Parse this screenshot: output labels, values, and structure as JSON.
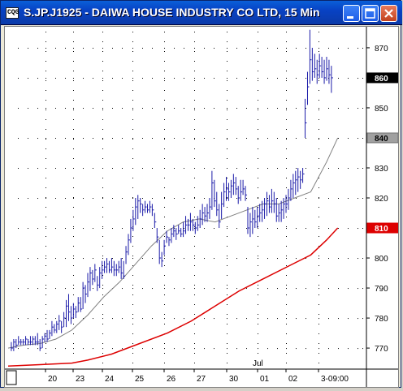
{
  "window": {
    "title": "S.JP.J1925 - DAIWA HOUSE INDUSTRY CO LTD, 15 Min",
    "app_icon_text": "CQG"
  },
  "colors": {
    "titlebar": "#0842c4",
    "price_bars": "#1a1aa8",
    "fast_ma": "#808080",
    "slow_ma": "#dd0000",
    "last_price_tag": "#000000",
    "fast_ma_tag": "#a0a0a0",
    "slow_ma_tag": "#dd0000"
  },
  "chart_data": {
    "type": "bar",
    "title": "",
    "y_ticks": [
      770,
      780,
      790,
      800,
      810,
      820,
      830,
      840,
      850,
      860,
      870
    ],
    "ylim": [
      763,
      877
    ],
    "x_ticks": [
      "20",
      "23",
      "24",
      "25",
      "26",
      "27",
      "30",
      "01",
      "02",
      "3-09:00"
    ],
    "month_label": "Jul",
    "tags": {
      "last_price": "860",
      "fast_ma": "840",
      "slow_ma": "810"
    },
    "fast_ma": [
      [
        0,
        770
      ],
      [
        20,
        771
      ],
      [
        40,
        771.5
      ],
      [
        60,
        773
      ],
      [
        80,
        776
      ],
      [
        100,
        781
      ],
      [
        120,
        787
      ],
      [
        140,
        792
      ],
      [
        160,
        798
      ],
      [
        180,
        804
      ],
      [
        200,
        809
      ],
      [
        220,
        812
      ],
      [
        240,
        813
      ],
      [
        260,
        812
      ],
      [
        280,
        814
      ],
      [
        300,
        816
      ],
      [
        320,
        818
      ],
      [
        340,
        818
      ],
      [
        360,
        820
      ],
      [
        380,
        822
      ],
      [
        400,
        832
      ],
      [
        414,
        840
      ]
    ],
    "slow_ma": [
      [
        0,
        764
      ],
      [
        40,
        764.5
      ],
      [
        80,
        765
      ],
      [
        100,
        766
      ],
      [
        130,
        768
      ],
      [
        160,
        771
      ],
      [
        200,
        775
      ],
      [
        230,
        779
      ],
      [
        260,
        784
      ],
      [
        290,
        789
      ],
      [
        320,
        793
      ],
      [
        350,
        797
      ],
      [
        380,
        801
      ],
      [
        400,
        806
      ],
      [
        414,
        810
      ]
    ],
    "price_bars": [
      [
        4,
        772,
        769,
        770
      ],
      [
        7,
        773,
        769,
        772
      ],
      [
        10,
        773,
        770,
        771
      ],
      [
        13,
        774,
        771,
        772
      ],
      [
        16,
        773,
        771,
        772
      ],
      [
        19,
        773,
        771,
        772
      ],
      [
        22,
        774,
        771,
        773
      ],
      [
        25,
        773,
        771,
        772
      ],
      [
        28,
        774,
        771,
        772
      ],
      [
        31,
        774,
        771,
        773
      ],
      [
        34,
        774,
        771,
        772
      ],
      [
        37,
        775,
        771,
        772
      ],
      [
        40,
        773,
        769,
        770
      ],
      [
        43,
        774,
        770,
        773
      ],
      [
        46,
        775,
        772,
        774
      ],
      [
        49,
        776,
        772,
        773
      ],
      [
        52,
        776,
        773,
        775
      ],
      [
        55,
        779,
        774,
        777
      ],
      [
        58,
        778,
        775,
        776
      ],
      [
        61,
        779,
        775,
        778
      ],
      [
        64,
        781,
        776,
        779
      ],
      [
        67,
        779,
        775,
        777
      ],
      [
        70,
        782,
        777,
        780
      ],
      [
        73,
        786,
        777,
        784
      ],
      [
        76,
        788,
        779,
        782
      ],
      [
        79,
        784,
        778,
        780
      ],
      [
        82,
        785,
        780,
        783
      ],
      [
        85,
        784,
        780,
        782
      ],
      [
        88,
        787,
        782,
        785
      ],
      [
        91,
        787,
        782,
        783
      ],
      [
        94,
        792,
        783,
        790
      ],
      [
        97,
        791,
        785,
        788
      ],
      [
        100,
        795,
        787,
        792
      ],
      [
        103,
        797,
        789,
        795
      ],
      [
        106,
        796,
        791,
        793
      ],
      [
        109,
        798,
        792,
        796
      ],
      [
        112,
        794,
        789,
        791
      ],
      [
        115,
        797,
        790,
        795
      ],
      [
        118,
        799,
        793,
        796
      ],
      [
        121,
        799,
        795,
        797
      ],
      [
        124,
        800,
        795,
        798
      ],
      [
        127,
        799,
        795,
        796
      ],
      [
        130,
        800,
        795,
        797
      ],
      [
        133,
        799,
        794,
        796
      ],
      [
        136,
        798,
        794,
        796
      ],
      [
        139,
        799,
        795,
        797
      ],
      [
        142,
        800,
        793,
        795
      ],
      [
        145,
        799,
        793,
        794
      ],
      [
        148,
        804,
        798,
        802
      ],
      [
        151,
        808,
        801,
        806
      ],
      [
        154,
        813,
        805,
        810
      ],
      [
        157,
        816,
        809,
        813
      ],
      [
        160,
        820,
        811,
        817
      ],
      [
        163,
        821,
        813,
        819
      ],
      [
        166,
        820,
        815,
        818
      ],
      [
        169,
        818,
        814,
        816
      ],
      [
        172,
        819,
        815,
        817
      ],
      [
        175,
        818,
        815,
        816
      ],
      [
        178,
        819,
        815,
        817
      ],
      [
        181,
        818,
        814,
        816
      ],
      [
        184,
        815,
        810,
        812
      ],
      [
        187,
        810,
        805,
        807
      ],
      [
        190,
        806,
        798,
        800
      ],
      [
        193,
        802,
        797,
        799
      ],
      [
        196,
        806,
        801,
        804
      ],
      [
        199,
        809,
        805,
        807
      ],
      [
        202,
        807,
        804,
        806
      ],
      [
        205,
        810,
        805,
        808
      ],
      [
        208,
        811,
        807,
        809
      ],
      [
        211,
        810,
        806,
        808
      ],
      [
        214,
        811,
        808,
        809
      ],
      [
        217,
        810,
        807,
        808
      ],
      [
        220,
        812,
        807,
        809
      ],
      [
        223,
        814,
        808,
        811
      ],
      [
        226,
        813,
        809,
        811
      ],
      [
        229,
        815,
        809,
        812
      ],
      [
        232,
        813,
        809,
        811
      ],
      [
        235,
        812,
        808,
        810
      ],
      [
        238,
        814,
        809,
        811
      ],
      [
        241,
        816,
        810,
        813
      ],
      [
        244,
        818,
        811,
        815
      ],
      [
        247,
        817,
        812,
        814
      ],
      [
        250,
        818,
        812,
        815
      ],
      [
        253,
        820,
        813,
        817
      ],
      [
        256,
        829,
        816,
        825
      ],
      [
        259,
        826,
        817,
        819
      ],
      [
        262,
        822,
        814,
        816
      ],
      [
        265,
        818,
        810,
        812
      ],
      [
        268,
        822,
        813,
        818
      ],
      [
        271,
        825,
        817,
        822
      ],
      [
        274,
        827,
        819,
        823
      ],
      [
        277,
        825,
        819,
        822
      ],
      [
        280,
        826,
        820,
        824
      ],
      [
        283,
        828,
        821,
        825
      ],
      [
        286,
        827,
        821,
        823
      ],
      [
        289,
        824,
        818,
        820
      ],
      [
        292,
        826,
        819,
        822
      ],
      [
        295,
        826,
        821,
        823
      ],
      [
        298,
        824,
        819,
        821
      ],
      [
        301,
        817,
        808,
        810
      ],
      [
        304,
        815,
        807,
        812
      ],
      [
        307,
        817,
        808,
        813
      ],
      [
        310,
        816,
        810,
        812
      ],
      [
        313,
        817,
        810,
        814
      ],
      [
        316,
        818,
        812,
        815
      ],
      [
        319,
        819,
        812,
        816
      ],
      [
        322,
        820,
        813,
        818
      ],
      [
        325,
        822,
        814,
        819
      ],
      [
        328,
        821,
        815,
        817
      ],
      [
        331,
        823,
        815,
        819
      ],
      [
        334,
        822,
        815,
        818
      ],
      [
        337,
        820,
        812,
        814
      ],
      [
        340,
        818,
        812,
        815
      ],
      [
        343,
        819,
        812,
        816
      ],
      [
        346,
        820,
        813,
        818
      ],
      [
        349,
        821,
        815,
        818
      ],
      [
        352,
        823,
        816,
        820
      ],
      [
        355,
        826,
        819,
        823
      ],
      [
        358,
        828,
        820,
        825
      ],
      [
        361,
        829,
        821,
        826
      ],
      [
        364,
        830,
        822,
        827
      ],
      [
        367,
        829,
        823,
        826
      ],
      [
        370,
        830,
        825,
        828
      ],
      [
        373,
        853,
        840,
        845
      ],
      [
        376,
        862,
        851,
        857
      ],
      [
        379,
        876,
        858,
        866
      ],
      [
        382,
        870,
        859,
        862
      ],
      [
        385,
        868,
        860,
        863
      ],
      [
        388,
        866,
        858,
        861
      ],
      [
        391,
        868,
        860,
        864
      ],
      [
        394,
        867,
        860,
        862
      ],
      [
        397,
        866,
        858,
        860
      ],
      [
        400,
        867,
        859,
        863
      ],
      [
        403,
        866,
        858,
        861
      ],
      [
        406,
        864,
        855,
        860
      ]
    ]
  }
}
